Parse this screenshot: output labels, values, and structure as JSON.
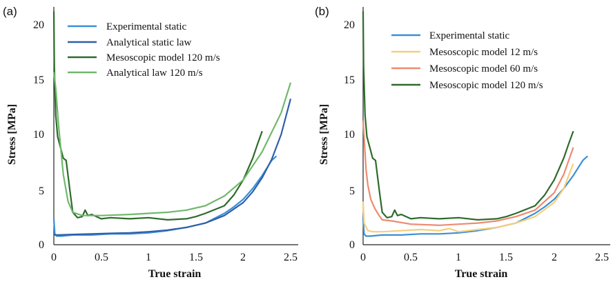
{
  "chart_data": [
    {
      "type": "line",
      "panel_label": "(a)",
      "xlabel": "True strain",
      "ylabel": "Stress [MPa]",
      "xlim": [
        0,
        2.5
      ],
      "ylim": [
        0,
        22
      ],
      "x_ticks": [
        0,
        0.5,
        1,
        1.5,
        2,
        2.5
      ],
      "x_tick_labels": [
        "0",
        "0.5",
        "1",
        "1.5",
        "2",
        "2.5"
      ],
      "y_ticks": [
        0,
        5,
        10,
        15,
        20
      ],
      "y_tick_labels": [
        "0",
        "5",
        "10",
        "15",
        "20"
      ],
      "grid": false,
      "legend_position": "top-center",
      "series": [
        {
          "name": "Experimental static",
          "color": "#3a8fd6",
          "x": [
            0,
            0.01,
            0.03,
            0.08,
            0.2,
            0.4,
            0.6,
            0.8,
            1.0,
            1.2,
            1.4,
            1.6,
            1.8,
            1.9,
            2.0,
            2.1,
            2.2,
            2.3,
            2.35
          ],
          "y": [
            2.4,
            1.0,
            0.8,
            0.8,
            0.9,
            0.9,
            1.0,
            1.0,
            1.1,
            1.3,
            1.6,
            2.0,
            2.9,
            3.5,
            4.2,
            5.2,
            6.4,
            7.8,
            8.2
          ]
        },
        {
          "name": "Analytical static law",
          "color": "#2f5fa8",
          "x": [
            0,
            0.05,
            0.2,
            0.4,
            0.6,
            0.8,
            1.0,
            1.2,
            1.4,
            1.6,
            1.8,
            2.0,
            2.1,
            2.2,
            2.3,
            2.4,
            2.5
          ],
          "y": [
            0.9,
            0.9,
            0.95,
            1.0,
            1.05,
            1.1,
            1.2,
            1.35,
            1.6,
            2.0,
            2.7,
            3.9,
            4.9,
            6.2,
            7.9,
            10.2,
            13.5
          ]
        },
        {
          "name": "Mesoscopic model 120 m/s",
          "color": "#2d6a2a",
          "x": [
            0,
            0.005,
            0.02,
            0.04,
            0.07,
            0.1,
            0.13,
            0.17,
            0.2,
            0.25,
            0.3,
            0.33,
            0.36,
            0.4,
            0.5,
            0.6,
            0.8,
            1.0,
            1.2,
            1.4,
            1.5,
            1.6,
            1.8,
            1.9,
            2.0,
            2.1,
            2.15,
            2.2
          ],
          "y": [
            21.6,
            16.5,
            12.0,
            10.0,
            9.0,
            8.0,
            7.8,
            5.0,
            3.0,
            2.5,
            2.6,
            3.2,
            2.7,
            2.8,
            2.4,
            2.5,
            2.4,
            2.5,
            2.3,
            2.4,
            2.6,
            2.9,
            3.6,
            4.6,
            6.0,
            8.0,
            9.3,
            10.5
          ]
        },
        {
          "name": "Analytical law 120 m/s",
          "color": "#6fb86b",
          "x": [
            0,
            0.02,
            0.05,
            0.1,
            0.15,
            0.2,
            0.3,
            0.5,
            0.8,
            1.0,
            1.2,
            1.4,
            1.6,
            1.8,
            2.0,
            2.2,
            2.4,
            2.5
          ],
          "y": [
            16.0,
            14.5,
            11.0,
            6.5,
            4.0,
            3.0,
            2.7,
            2.7,
            2.8,
            2.9,
            3.0,
            3.2,
            3.6,
            4.5,
            6.0,
            8.6,
            12.2,
            15.0
          ]
        }
      ]
    },
    {
      "type": "line",
      "panel_label": "(b)",
      "xlabel": "True strain",
      "ylabel": "Stress [MPa]",
      "xlim": [
        0,
        2.5
      ],
      "ylim": [
        0,
        22
      ],
      "x_ticks": [
        0,
        0.5,
        1,
        1.5,
        2,
        2.5
      ],
      "x_tick_labels": [
        "0",
        "0.5",
        "1",
        "1.5",
        "2",
        "2.5"
      ],
      "y_ticks": [
        0,
        5,
        10,
        15,
        20
      ],
      "y_tick_labels": [
        "0",
        "5",
        "10",
        "15",
        "20"
      ],
      "grid": false,
      "legend_position": "top-center",
      "series": [
        {
          "name": "Experimental static",
          "color": "#3a8fd6",
          "x": [
            0,
            0.01,
            0.03,
            0.08,
            0.2,
            0.4,
            0.6,
            0.8,
            1.0,
            1.2,
            1.4,
            1.6,
            1.8,
            1.9,
            2.0,
            2.1,
            2.2,
            2.3,
            2.35
          ],
          "y": [
            2.4,
            1.0,
            0.8,
            0.8,
            0.9,
            0.9,
            1.0,
            1.0,
            1.1,
            1.3,
            1.6,
            2.0,
            2.9,
            3.5,
            4.2,
            5.2,
            6.4,
            7.8,
            8.2
          ]
        },
        {
          "name": "Mesoscopic model 12 m/s",
          "color": "#f5cf7a",
          "x": [
            0,
            0.01,
            0.05,
            0.1,
            0.2,
            0.4,
            0.6,
            0.8,
            0.9,
            1.0,
            1.2,
            1.4,
            1.6,
            1.8,
            2.0,
            2.1,
            2.2
          ],
          "y": [
            4.0,
            2.0,
            1.3,
            1.2,
            1.2,
            1.3,
            1.4,
            1.3,
            1.5,
            1.2,
            1.4,
            1.6,
            2.0,
            2.6,
            3.9,
            5.2,
            7.5
          ]
        },
        {
          "name": "Mesoscopic model 60 m/s",
          "color": "#ec8b6f",
          "x": [
            0,
            0.01,
            0.03,
            0.05,
            0.08,
            0.12,
            0.16,
            0.2,
            0.3,
            0.5,
            0.8,
            1.0,
            1.2,
            1.4,
            1.6,
            1.8,
            2.0,
            2.1,
            2.2
          ],
          "y": [
            11.5,
            10.0,
            7.0,
            5.5,
            4.2,
            3.4,
            2.8,
            2.3,
            2.2,
            1.9,
            1.8,
            1.9,
            2.0,
            2.2,
            2.6,
            3.2,
            4.8,
            6.5,
            9.0
          ]
        },
        {
          "name": "Mesoscopic model 120 m/s",
          "color": "#2d6a2a",
          "x": [
            0,
            0.005,
            0.02,
            0.04,
            0.07,
            0.1,
            0.13,
            0.17,
            0.2,
            0.25,
            0.3,
            0.33,
            0.36,
            0.4,
            0.5,
            0.6,
            0.8,
            1.0,
            1.2,
            1.4,
            1.5,
            1.6,
            1.8,
            1.9,
            2.0,
            2.1,
            2.15,
            2.2
          ],
          "y": [
            21.6,
            16.5,
            12.0,
            10.0,
            9.0,
            8.0,
            7.8,
            5.0,
            3.0,
            2.5,
            2.6,
            3.2,
            2.7,
            2.8,
            2.4,
            2.5,
            2.4,
            2.5,
            2.3,
            2.4,
            2.6,
            2.9,
            3.6,
            4.6,
            6.0,
            8.0,
            9.3,
            10.5
          ]
        }
      ]
    }
  ]
}
